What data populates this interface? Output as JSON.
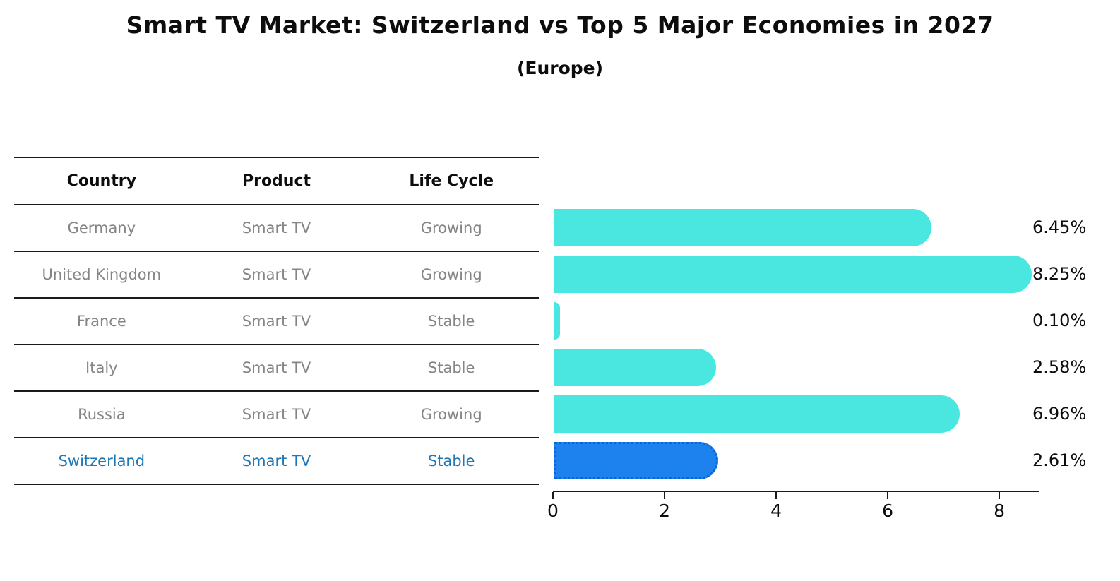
{
  "header": {
    "title": "Smart TV Market: Switzerland vs Top 5 Major Economies in 2027",
    "subtitle": "(Europe)"
  },
  "table": {
    "columns": [
      "Country",
      "Product",
      "Life Cycle"
    ],
    "rows": [
      {
        "country": "Germany",
        "product": "Smart TV",
        "life_cycle": "Growing"
      },
      {
        "country": "United Kingdom",
        "product": "Smart TV",
        "life_cycle": "Growing"
      },
      {
        "country": "France",
        "product": "Smart TV",
        "life_cycle": "Stable"
      },
      {
        "country": "Italy",
        "product": "Smart TV",
        "life_cycle": "Stable"
      },
      {
        "country": "Russia",
        "product": "Smart TV",
        "life_cycle": "Growing"
      },
      {
        "country": "Switzerland",
        "product": "Smart TV",
        "life_cycle": "Stable"
      }
    ]
  },
  "chart_data": {
    "type": "bar",
    "orientation": "horizontal",
    "title": "Smart TV Market: Switzerland vs Top 5 Major Economies in 2027",
    "subtitle": "(Europe)",
    "categories": [
      "Germany",
      "United Kingdom",
      "France",
      "Italy",
      "Russia",
      "Switzerland"
    ],
    "values": [
      6.45,
      8.25,
      0.1,
      2.58,
      6.96,
      2.61
    ],
    "value_labels": [
      "6.45%",
      "8.25%",
      "0.10%",
      "2.58%",
      "6.96%",
      "2.61%"
    ],
    "xlabel": "",
    "ylabel": "",
    "xticks": [
      0,
      2,
      4,
      6,
      8
    ],
    "xlim": [
      0,
      8.72
    ],
    "grid": false,
    "legend": "none",
    "highlight_index": 5
  },
  "colors": {
    "bar": "#4AE7E1",
    "highlight_bar": "#1E82EE",
    "highlight_border": "#0B63D6",
    "highlight_text": "#1F77B4",
    "text_gray": "#858585"
  }
}
